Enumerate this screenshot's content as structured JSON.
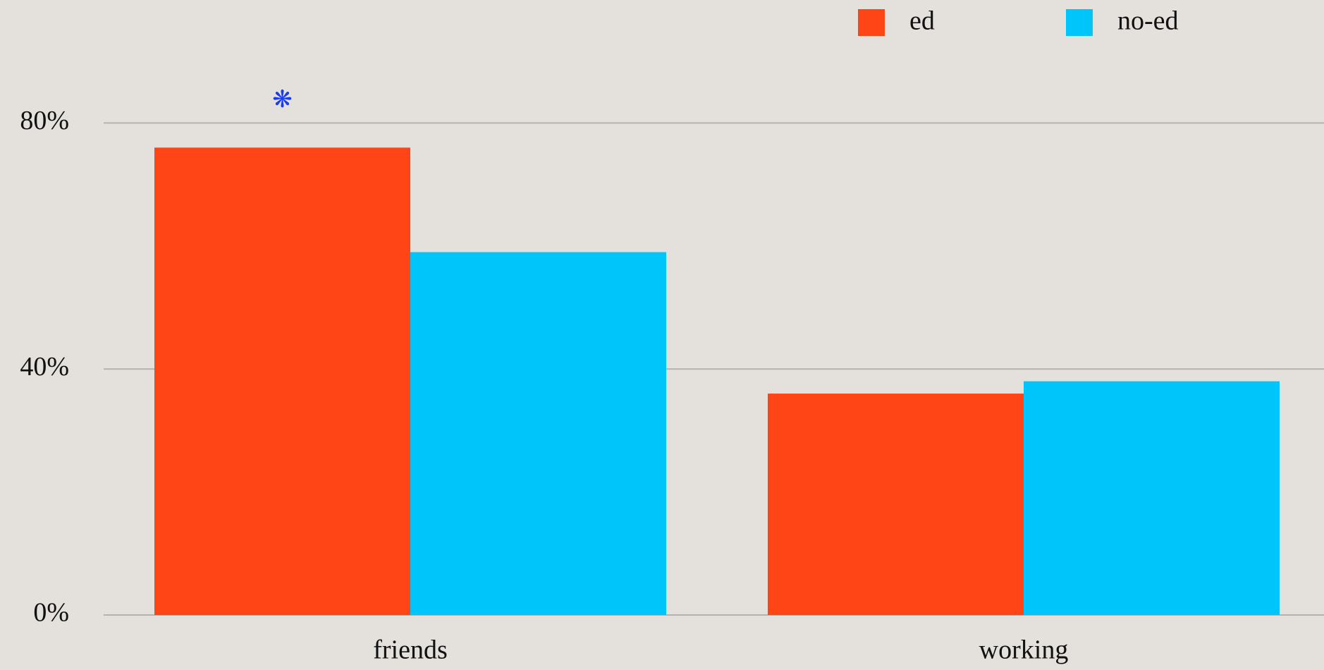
{
  "chart_data": {
    "type": "bar",
    "categories": [
      "friends",
      "working"
    ],
    "series": [
      {
        "name": "ed",
        "color": "#ff4416",
        "values": [
          76,
          36
        ]
      },
      {
        "name": "no-ed",
        "color": "#00c5fa",
        "values": [
          59,
          38
        ]
      }
    ],
    "ylim": [
      0,
      100
    ],
    "yticks": [
      {
        "value": 0,
        "label": "0%"
      },
      {
        "value": 40,
        "label": "40%"
      },
      {
        "value": 80,
        "label": "80%"
      }
    ],
    "grid": true,
    "legend": "top-right",
    "annotation": "❋"
  }
}
